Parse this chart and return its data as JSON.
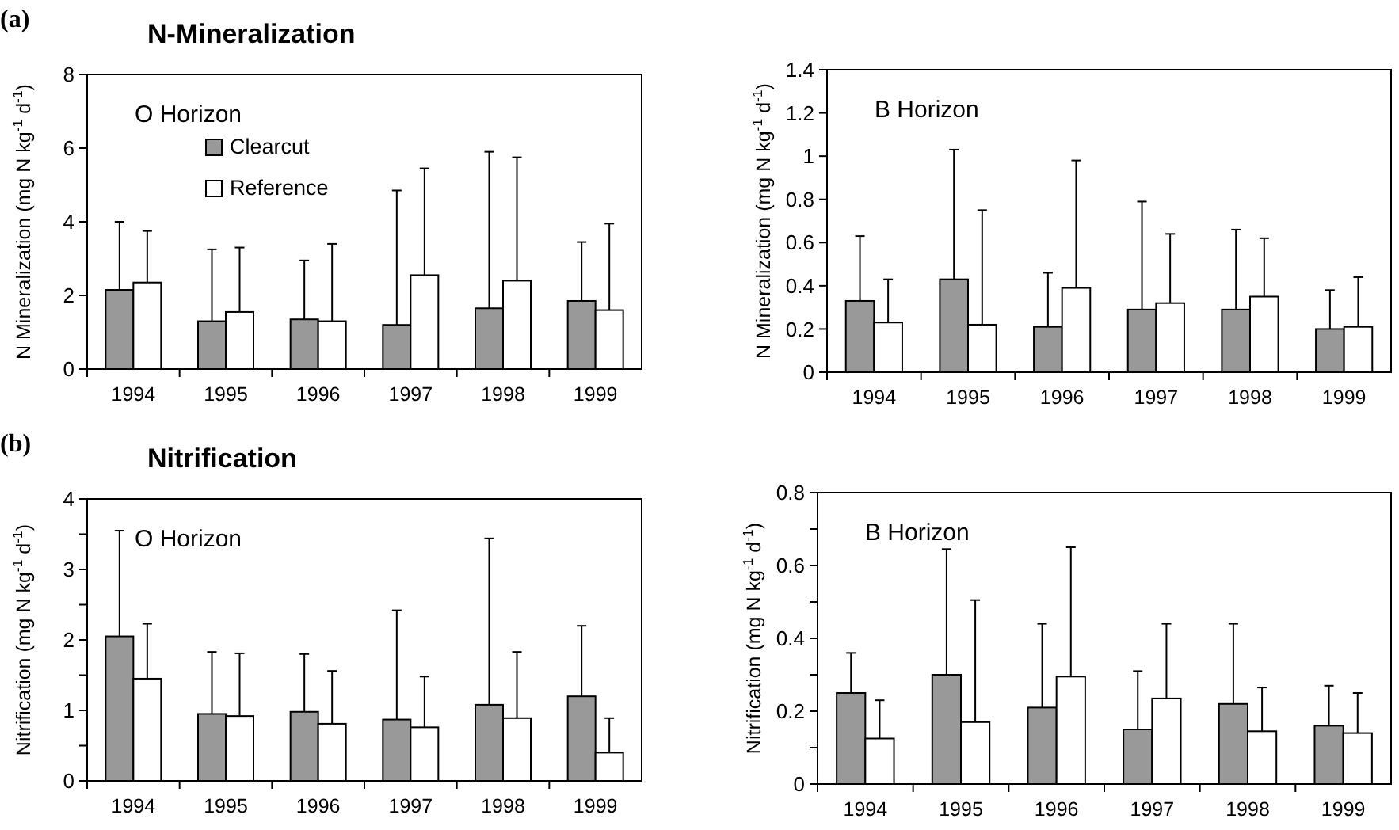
{
  "chart_data": [
    {
      "type": "bar",
      "title": "N-Mineralization",
      "ylabel": "N Mineralization (mg N kg$^{-1}$ d$^{-1}$)",
      "annotations": [
        "(a)",
        "O Horizon"
      ],
      "categories": [
        "1994",
        "1995",
        "1996",
        "1997",
        "1998",
        "1999"
      ],
      "ylim": [
        0,
        8
      ],
      "yticks": [
        0,
        2,
        4,
        6,
        8
      ],
      "legend": "top left",
      "series": [
        {
          "name": "Clearcut",
          "color": "#999999",
          "values": [
            2.15,
            1.3,
            1.35,
            1.2,
            1.65,
            1.85
          ],
          "errors": [
            [
              2.15,
              4.0
            ],
            [
              1.3,
              3.25
            ],
            [
              1.35,
              2.95
            ],
            [
              1.2,
              4.85
            ],
            [
              1.65,
              5.9
            ],
            [
              1.85,
              3.45
            ]
          ]
        },
        {
          "name": "Reference",
          "color": "#ffffff",
          "values": [
            2.35,
            1.55,
            1.3,
            2.55,
            2.4,
            1.6
          ],
          "errors": [
            [
              2.35,
              3.75
            ],
            [
              1.55,
              3.3
            ],
            [
              1.3,
              3.4
            ],
            [
              2.55,
              5.45
            ],
            [
              2.4,
              5.75
            ],
            [
              1.6,
              3.95
            ]
          ]
        }
      ]
    },
    {
      "type": "bar",
      "ylabel": "N Mineralization (mg N kg$^{-1}$ d$^{-1}$)",
      "annotations": [
        "B Horizon"
      ],
      "categories": [
        "1994",
        "1995",
        "1996",
        "1997",
        "1998",
        "1999"
      ],
      "ylim": [
        0,
        1.4
      ],
      "yticks": [
        0,
        0.2,
        0.4,
        0.6,
        0.8,
        1,
        1.2,
        1.4
      ],
      "series": [
        {
          "color": "#999999",
          "values": [
            0.33,
            0.43,
            0.21,
            0.29,
            0.29,
            0.2
          ],
          "errors": [
            [
              0.33,
              0.63
            ],
            [
              0.43,
              1.03
            ],
            [
              0.21,
              0.46
            ],
            [
              0.29,
              0.79
            ],
            [
              0.29,
              0.66
            ],
            [
              0.2,
              0.38
            ]
          ]
        },
        {
          "color": "#ffffff",
          "values": [
            0.23,
            0.22,
            0.39,
            0.32,
            0.35,
            0.21
          ],
          "errors": [
            [
              0.23,
              0.43
            ],
            [
              0.22,
              0.75
            ],
            [
              0.39,
              0.98
            ],
            [
              0.32,
              0.64
            ],
            [
              0.35,
              0.62
            ],
            [
              0.21,
              0.44
            ]
          ]
        }
      ]
    },
    {
      "type": "bar",
      "title": "Nitrification",
      "ylabel": "Nitrification (mg N kg$^{-1}$ d$^{-1}$)",
      "annotations": [
        "(b)",
        "O Horizon"
      ],
      "categories": [
        "1994",
        "1995",
        "1996",
        "1997",
        "1998",
        "1999"
      ],
      "ylim": [
        0,
        4
      ],
      "yticks": [
        0,
        {
          "value": 0.5,
          "label": null
        },
        1,
        {
          "value": 1.5,
          "label": null
        },
        2,
        {
          "value": 2.5,
          "label": null
        },
        3,
        {
          "value": 3.5,
          "label": null
        },
        4
      ],
      "series": [
        {
          "color": "#999999",
          "values": [
            2.05,
            0.95,
            0.98,
            0.87,
            1.08,
            1.2
          ],
          "errors": [
            [
              2.05,
              3.55
            ],
            [
              0.95,
              1.83
            ],
            [
              0.98,
              1.8
            ],
            [
              0.87,
              2.42
            ],
            [
              1.08,
              3.44
            ],
            [
              1.2,
              2.2
            ]
          ]
        },
        {
          "color": "#ffffff",
          "values": [
            1.45,
            0.92,
            0.81,
            0.76,
            0.89,
            0.4
          ],
          "errors": [
            [
              1.45,
              2.23
            ],
            [
              0.92,
              1.81
            ],
            [
              0.81,
              1.56
            ],
            [
              0.76,
              1.48
            ],
            [
              0.89,
              1.83
            ],
            [
              0.4,
              0.89
            ]
          ]
        }
      ]
    },
    {
      "type": "bar",
      "ylabel": "Nitrification (mg N kg$^{-1}$ d$^{-1}$)",
      "annotations": [
        "B Horizon"
      ],
      "categories": [
        "1994",
        "1995",
        "1996",
        "1997",
        "1998",
        "1999"
      ],
      "ylim": [
        0,
        0.8
      ],
      "yticks": [
        0,
        {
          "value": 0.1,
          "label": null
        },
        0.2,
        {
          "value": 0.3,
          "label": null
        },
        0.4,
        {
          "value": 0.5,
          "label": null
        },
        0.6,
        {
          "value": 0.7,
          "label": null
        },
        0.8
      ],
      "series": [
        {
          "color": "#999999",
          "values": [
            0.25,
            0.3,
            0.21,
            0.15,
            0.22,
            0.16
          ],
          "errors": [
            [
              0.25,
              0.36
            ],
            [
              0.3,
              0.645
            ],
            [
              0.21,
              0.44
            ],
            [
              0.15,
              0.31
            ],
            [
              0.22,
              0.44
            ],
            [
              0.16,
              0.27
            ]
          ]
        },
        {
          "color": "#ffffff",
          "values": [
            0.125,
            0.17,
            0.295,
            0.235,
            0.145,
            0.14
          ],
          "errors": [
            [
              0.125,
              0.23
            ],
            [
              0.17,
              0.505
            ],
            [
              0.295,
              0.65
            ],
            [
              0.235,
              0.44
            ],
            [
              0.145,
              0.265
            ],
            [
              0.14,
              0.25
            ]
          ]
        }
      ]
    }
  ]
}
